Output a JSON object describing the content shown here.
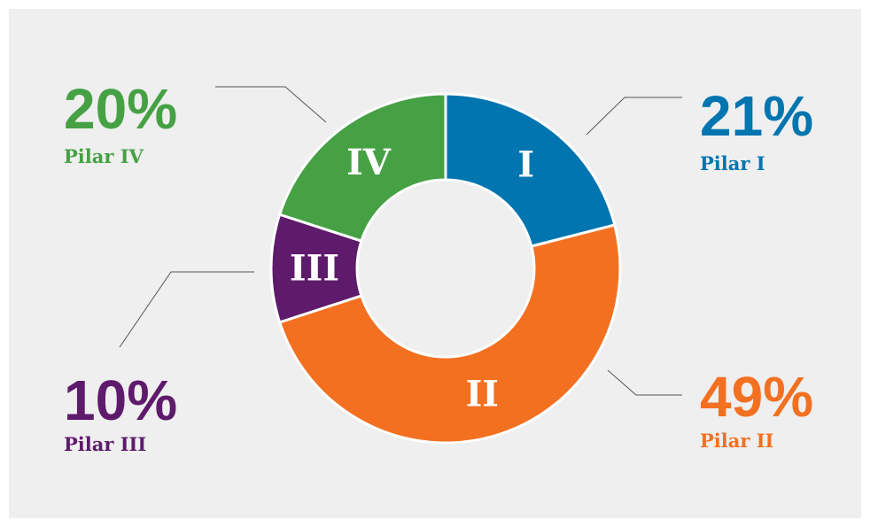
{
  "chart_data": {
    "type": "donut",
    "categories": [
      "Pilar I",
      "Pilar II",
      "Pilar III",
      "Pilar IV"
    ],
    "values": [
      21,
      49,
      10,
      20
    ],
    "value_labels": [
      "21%",
      "49%",
      "10%",
      "20%"
    ],
    "segment_labels": [
      "I",
      "II",
      "III",
      "IV"
    ],
    "colors": [
      "#0075b0",
      "#f37021",
      "#5e1a6b",
      "#46a144"
    ]
  }
}
